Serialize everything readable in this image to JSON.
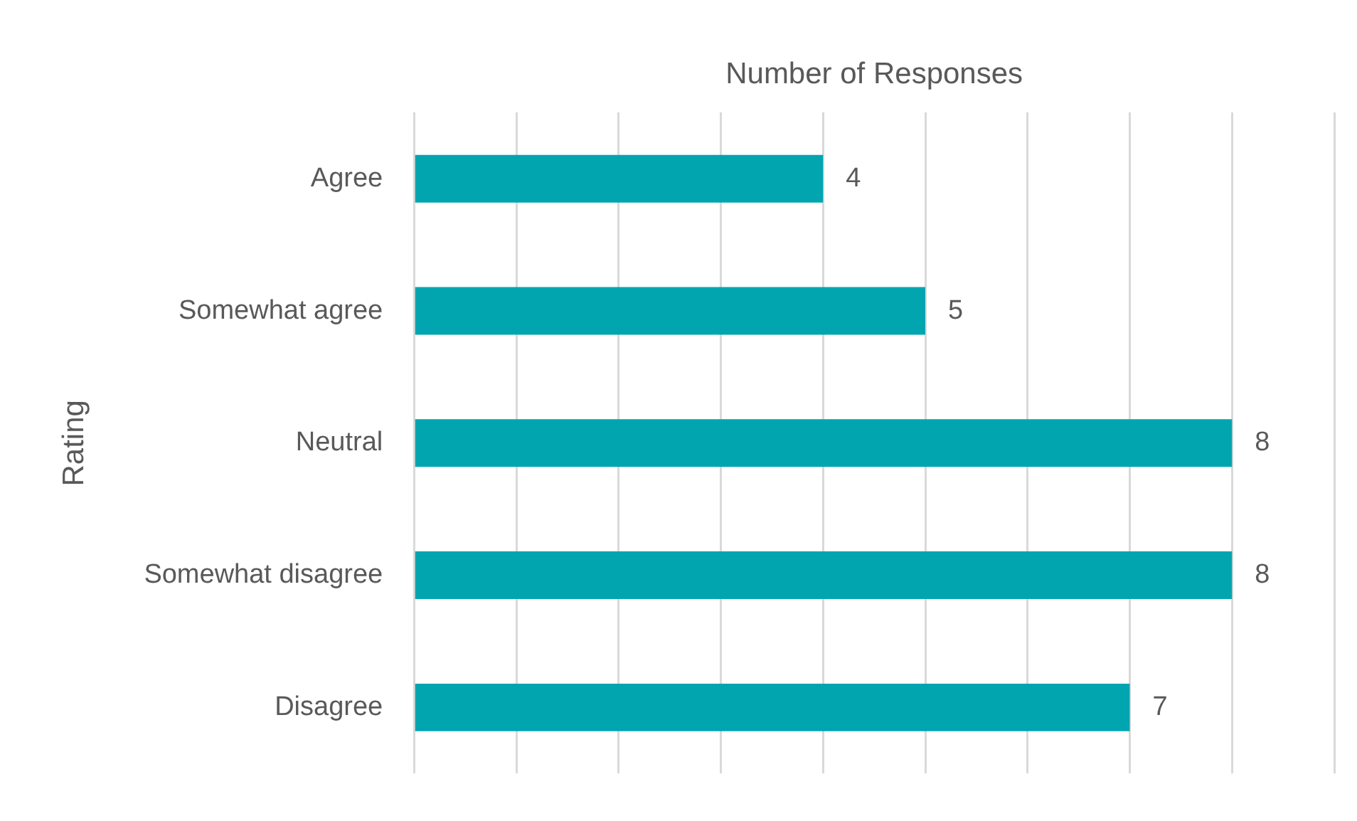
{
  "chart_data": {
    "type": "bar",
    "orientation": "horizontal",
    "xlabel": "Number of Responses",
    "ylabel": "Rating",
    "categories": [
      "Agree",
      "Somewhat agree",
      "Neutral",
      "Somewhat disagree",
      "Disagree"
    ],
    "values": [
      4,
      5,
      8,
      8,
      7
    ],
    "color": "#00a5b0",
    "xlim": [
      0,
      9
    ],
    "xticks": [
      {
        "value": 0,
        "label": null
      },
      {
        "value": 1,
        "label": null
      },
      {
        "value": 2,
        "label": null
      },
      {
        "value": 3,
        "label": null
      },
      {
        "value": 4,
        "label": null
      },
      {
        "value": 5,
        "label": null
      },
      {
        "value": 6,
        "label": null
      },
      {
        "value": 7,
        "label": null
      },
      {
        "value": 8,
        "label": null
      },
      {
        "value": 9,
        "label": null
      }
    ],
    "grid": "x",
    "tick_labels": "y",
    "data_labels": true,
    "legend": false
  }
}
